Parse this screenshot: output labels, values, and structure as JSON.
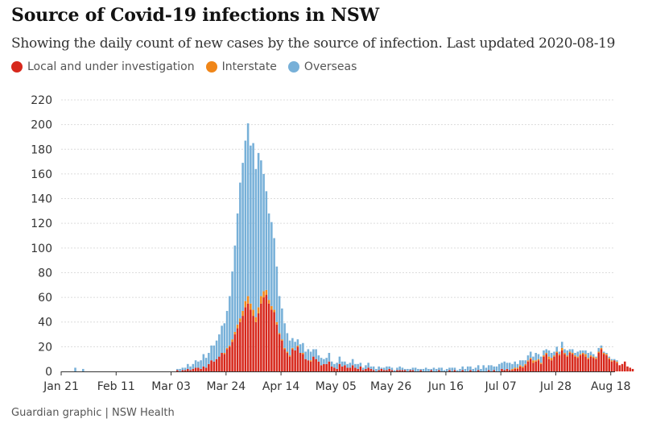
{
  "header": {
    "title": "Source of Covid-19 infections in NSW",
    "subtitle": "Showing the daily count of new cases by the source of infection. Last updated 2020-08-19"
  },
  "footer": {
    "source": "Guardian graphic | NSW Health"
  },
  "colors": {
    "local": "#d7281c",
    "interstate": "#f08619",
    "overseas": "#77b0d8",
    "grid": "#dcdcdc",
    "axis": "#333333"
  },
  "chart_data": {
    "type": "bar",
    "stacked": true,
    "title": "Source of Covid-19 infections in NSW",
    "xlabel": "",
    "ylabel": "",
    "ylim": [
      0,
      220
    ],
    "yticks": [
      0,
      20,
      40,
      60,
      80,
      100,
      120,
      140,
      160,
      180,
      200,
      220
    ],
    "xticks": [
      "Jan 21",
      "Feb 11",
      "Mar 03",
      "Mar 24",
      "Apr 14",
      "May 05",
      "May 26",
      "Jun 16",
      "Jul 07",
      "Jul 28",
      "Aug 18"
    ],
    "grid": true,
    "legend_position": "top-left",
    "start_date": "2020-01-21",
    "series": [
      {
        "name": "Local and under investigation",
        "color": "#d7281c",
        "values": [
          0,
          0,
          0,
          0,
          0,
          0,
          0,
          0,
          0,
          0,
          0,
          0,
          0,
          0,
          0,
          0,
          0,
          0,
          0,
          0,
          0,
          0,
          0,
          0,
          0,
          0,
          0,
          0,
          0,
          0,
          0,
          0,
          0,
          0,
          0,
          0,
          0,
          0,
          0,
          0,
          0,
          0,
          0,
          0,
          1,
          0,
          1,
          1,
          2,
          1,
          2,
          3,
          3,
          2,
          4,
          3,
          6,
          9,
          8,
          10,
          12,
          15,
          14,
          18,
          20,
          24,
          30,
          35,
          40,
          45,
          52,
          55,
          50,
          45,
          40,
          47,
          55,
          60,
          62,
          55,
          50,
          48,
          38,
          30,
          25,
          18,
          15,
          12,
          18,
          17,
          20,
          15,
          14,
          10,
          9,
          8,
          12,
          10,
          8,
          5,
          6,
          6,
          8,
          4,
          3,
          2,
          6,
          4,
          5,
          3,
          3,
          5,
          3,
          2,
          4,
          1,
          2,
          3,
          2,
          1,
          0,
          1,
          2,
          1,
          1,
          2,
          1,
          0,
          1,
          1,
          1,
          1,
          0,
          1,
          1,
          0,
          0,
          1,
          0,
          0,
          0,
          1,
          0,
          0,
          1,
          0,
          0,
          0,
          1,
          0,
          1,
          0,
          0,
          1,
          0,
          0,
          1,
          0,
          0,
          1,
          0,
          0,
          0,
          1,
          0,
          1,
          0,
          0,
          2,
          1,
          2,
          1,
          1,
          2,
          2,
          4,
          3,
          5,
          8,
          10,
          7,
          8,
          9,
          6,
          12,
          14,
          10,
          9,
          12,
          15,
          13,
          17,
          14,
          12,
          15,
          14,
          12,
          11,
          13,
          14,
          12,
          10,
          12,
          11,
          10,
          15,
          18,
          14,
          13,
          10,
          8,
          9,
          7,
          5,
          6,
          8,
          4,
          3,
          2
        ]
      },
      {
        "name": "Interstate",
        "color": "#f08619",
        "values": [
          0,
          0,
          0,
          0,
          0,
          0,
          0,
          0,
          0,
          0,
          0,
          0,
          0,
          0,
          0,
          0,
          0,
          0,
          0,
          0,
          0,
          0,
          0,
          0,
          0,
          0,
          0,
          0,
          0,
          0,
          0,
          0,
          0,
          0,
          0,
          0,
          0,
          0,
          0,
          0,
          0,
          0,
          0,
          0,
          0,
          0,
          0,
          0,
          0,
          0,
          0,
          0,
          0,
          0,
          0,
          0,
          0,
          0,
          0,
          0,
          0,
          0,
          1,
          1,
          1,
          2,
          2,
          3,
          3,
          4,
          5,
          6,
          5,
          5,
          4,
          5,
          6,
          5,
          4,
          3,
          3,
          2,
          2,
          1,
          1,
          1,
          1,
          1,
          1,
          0,
          1,
          0,
          1,
          0,
          0,
          1,
          0,
          0,
          0,
          0,
          0,
          0,
          0,
          0,
          0,
          0,
          0,
          0,
          0,
          0,
          0,
          0,
          0,
          0,
          0,
          0,
          0,
          0,
          0,
          0,
          0,
          0,
          0,
          0,
          0,
          0,
          0,
          0,
          0,
          0,
          0,
          0,
          0,
          0,
          0,
          0,
          0,
          0,
          0,
          0,
          0,
          0,
          0,
          0,
          0,
          0,
          0,
          0,
          0,
          0,
          0,
          0,
          0,
          0,
          0,
          0,
          0,
          0,
          0,
          0,
          0,
          0,
          0,
          0,
          0,
          0,
          0,
          0,
          0,
          0,
          0,
          0,
          1,
          1,
          1,
          1,
          1,
          1,
          1,
          1,
          2,
          1,
          1,
          1,
          1,
          1,
          2,
          2,
          1,
          1,
          1,
          2,
          1,
          1,
          1,
          1,
          1,
          1,
          1,
          1,
          2,
          1,
          1,
          1,
          1,
          1,
          1,
          1,
          1,
          1,
          1,
          0,
          1,
          0,
          0,
          0,
          0,
          0,
          0
        ]
      },
      {
        "name": "Overseas",
        "color": "#77b0d8",
        "values": [
          0,
          0,
          0,
          0,
          0,
          3,
          0,
          0,
          2,
          0,
          0,
          0,
          0,
          0,
          0,
          0,
          0,
          0,
          0,
          0,
          0,
          0,
          0,
          0,
          0,
          0,
          0,
          0,
          0,
          0,
          0,
          0,
          0,
          0,
          0,
          0,
          0,
          0,
          0,
          0,
          0,
          0,
          0,
          0,
          1,
          2,
          2,
          2,
          4,
          3,
          4,
          6,
          5,
          7,
          10,
          8,
          9,
          12,
          13,
          15,
          18,
          22,
          24,
          30,
          40,
          55,
          70,
          90,
          110,
          120,
          130,
          140,
          128,
          135,
          120,
          125,
          110,
          95,
          80,
          70,
          68,
          58,
          45,
          30,
          25,
          20,
          15,
          12,
          8,
          7,
          5,
          7,
          8,
          6,
          9,
          7,
          6,
          8,
          5,
          6,
          4,
          5,
          7,
          4,
          3,
          5,
          6,
          4,
          3,
          3,
          4,
          5,
          3,
          4,
          3,
          2,
          3,
          4,
          2,
          3,
          2,
          3,
          1,
          2,
          3,
          2,
          2,
          1,
          2,
          3,
          2,
          1,
          2,
          1,
          2,
          3,
          2,
          1,
          2,
          3,
          2,
          1,
          3,
          2,
          2,
          3,
          1,
          2,
          2,
          3,
          2,
          1,
          2,
          3,
          2,
          4,
          3,
          2,
          3,
          4,
          2,
          5,
          3,
          4,
          5,
          3,
          4,
          6,
          5,
          7,
          5,
          6,
          4,
          5,
          3,
          4,
          5,
          3,
          4,
          5,
          3,
          6,
          4,
          5,
          4,
          3,
          5,
          4,
          3,
          4,
          2,
          5,
          3,
          4,
          2,
          3,
          2,
          4,
          3,
          2,
          3,
          4,
          3,
          2,
          1,
          3,
          2,
          1,
          1,
          1,
          1,
          1,
          1
        ]
      }
    ]
  }
}
